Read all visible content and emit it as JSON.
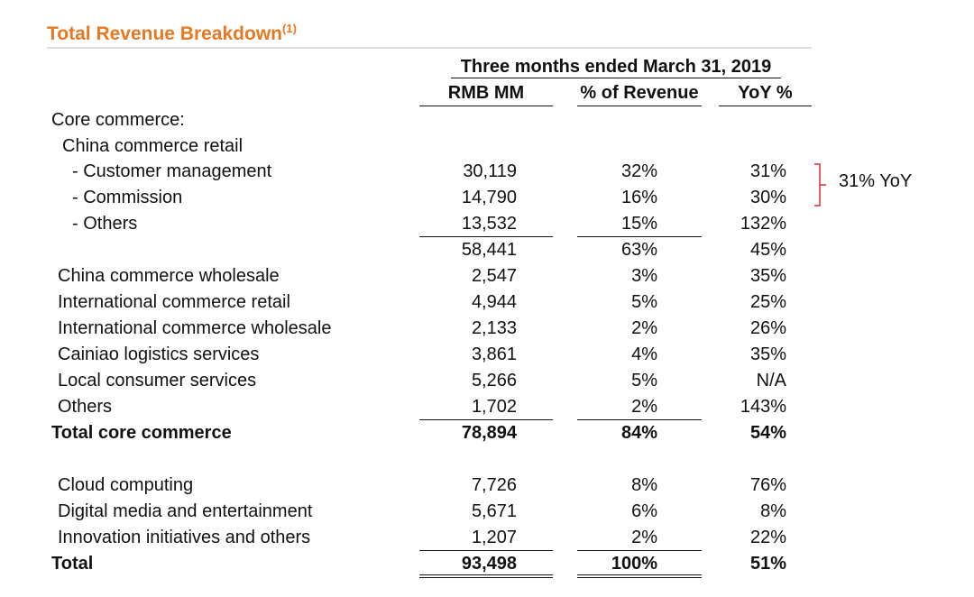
{
  "title": "Total Revenue Breakdown",
  "title_superscript": "(1)",
  "table": {
    "period": "Three months ended March 31, 2019",
    "columns": [
      "RMB MM",
      "% of Revenue",
      "YoY %"
    ],
    "rows": [
      {
        "label": "Core commerce:"
      },
      {
        "label": "China commerce retail"
      },
      {
        "label": "- Customer management",
        "values": [
          "30,119",
          "32%",
          "31%"
        ]
      },
      {
        "label": "- Commission",
        "values": [
          "14,790",
          "16%",
          "30%"
        ]
      },
      {
        "label": "- Others",
        "values": [
          "13,532",
          "15%",
          "132%"
        ]
      },
      {
        "values": [
          "58,441",
          "63%",
          "45%"
        ]
      },
      {
        "label": "China commerce wholesale",
        "values": [
          "2,547",
          "3%",
          "35%"
        ]
      },
      {
        "label": "International commerce retail",
        "values": [
          "4,944",
          "5%",
          "25%"
        ]
      },
      {
        "label": "International commerce wholesale",
        "values": [
          "2,133",
          "2%",
          "26%"
        ]
      },
      {
        "label": "Cainiao logistics services",
        "values": [
          "3,861",
          "4%",
          "35%"
        ]
      },
      {
        "label": "Local consumer services",
        "values": [
          "5,266",
          "5%",
          "N/A"
        ]
      },
      {
        "label": "Others",
        "values": [
          "1,702",
          "2%",
          "143%"
        ]
      },
      {
        "label": "Total core commerce",
        "values": [
          "78,894",
          "84%",
          "54%"
        ]
      },
      {
        "label": "Cloud computing",
        "values": [
          "7,726",
          "8%",
          "76%"
        ]
      },
      {
        "label": "Digital media and entertainment",
        "values": [
          "5,671",
          "6%",
          "8%"
        ]
      },
      {
        "label": "Innovation initiatives and others",
        "values": [
          "1,207",
          "2%",
          "22%"
        ]
      },
      {
        "label": "Total",
        "values": [
          "93,498",
          "100%",
          "51%"
        ]
      }
    ]
  },
  "annotation": "31% YoY"
}
